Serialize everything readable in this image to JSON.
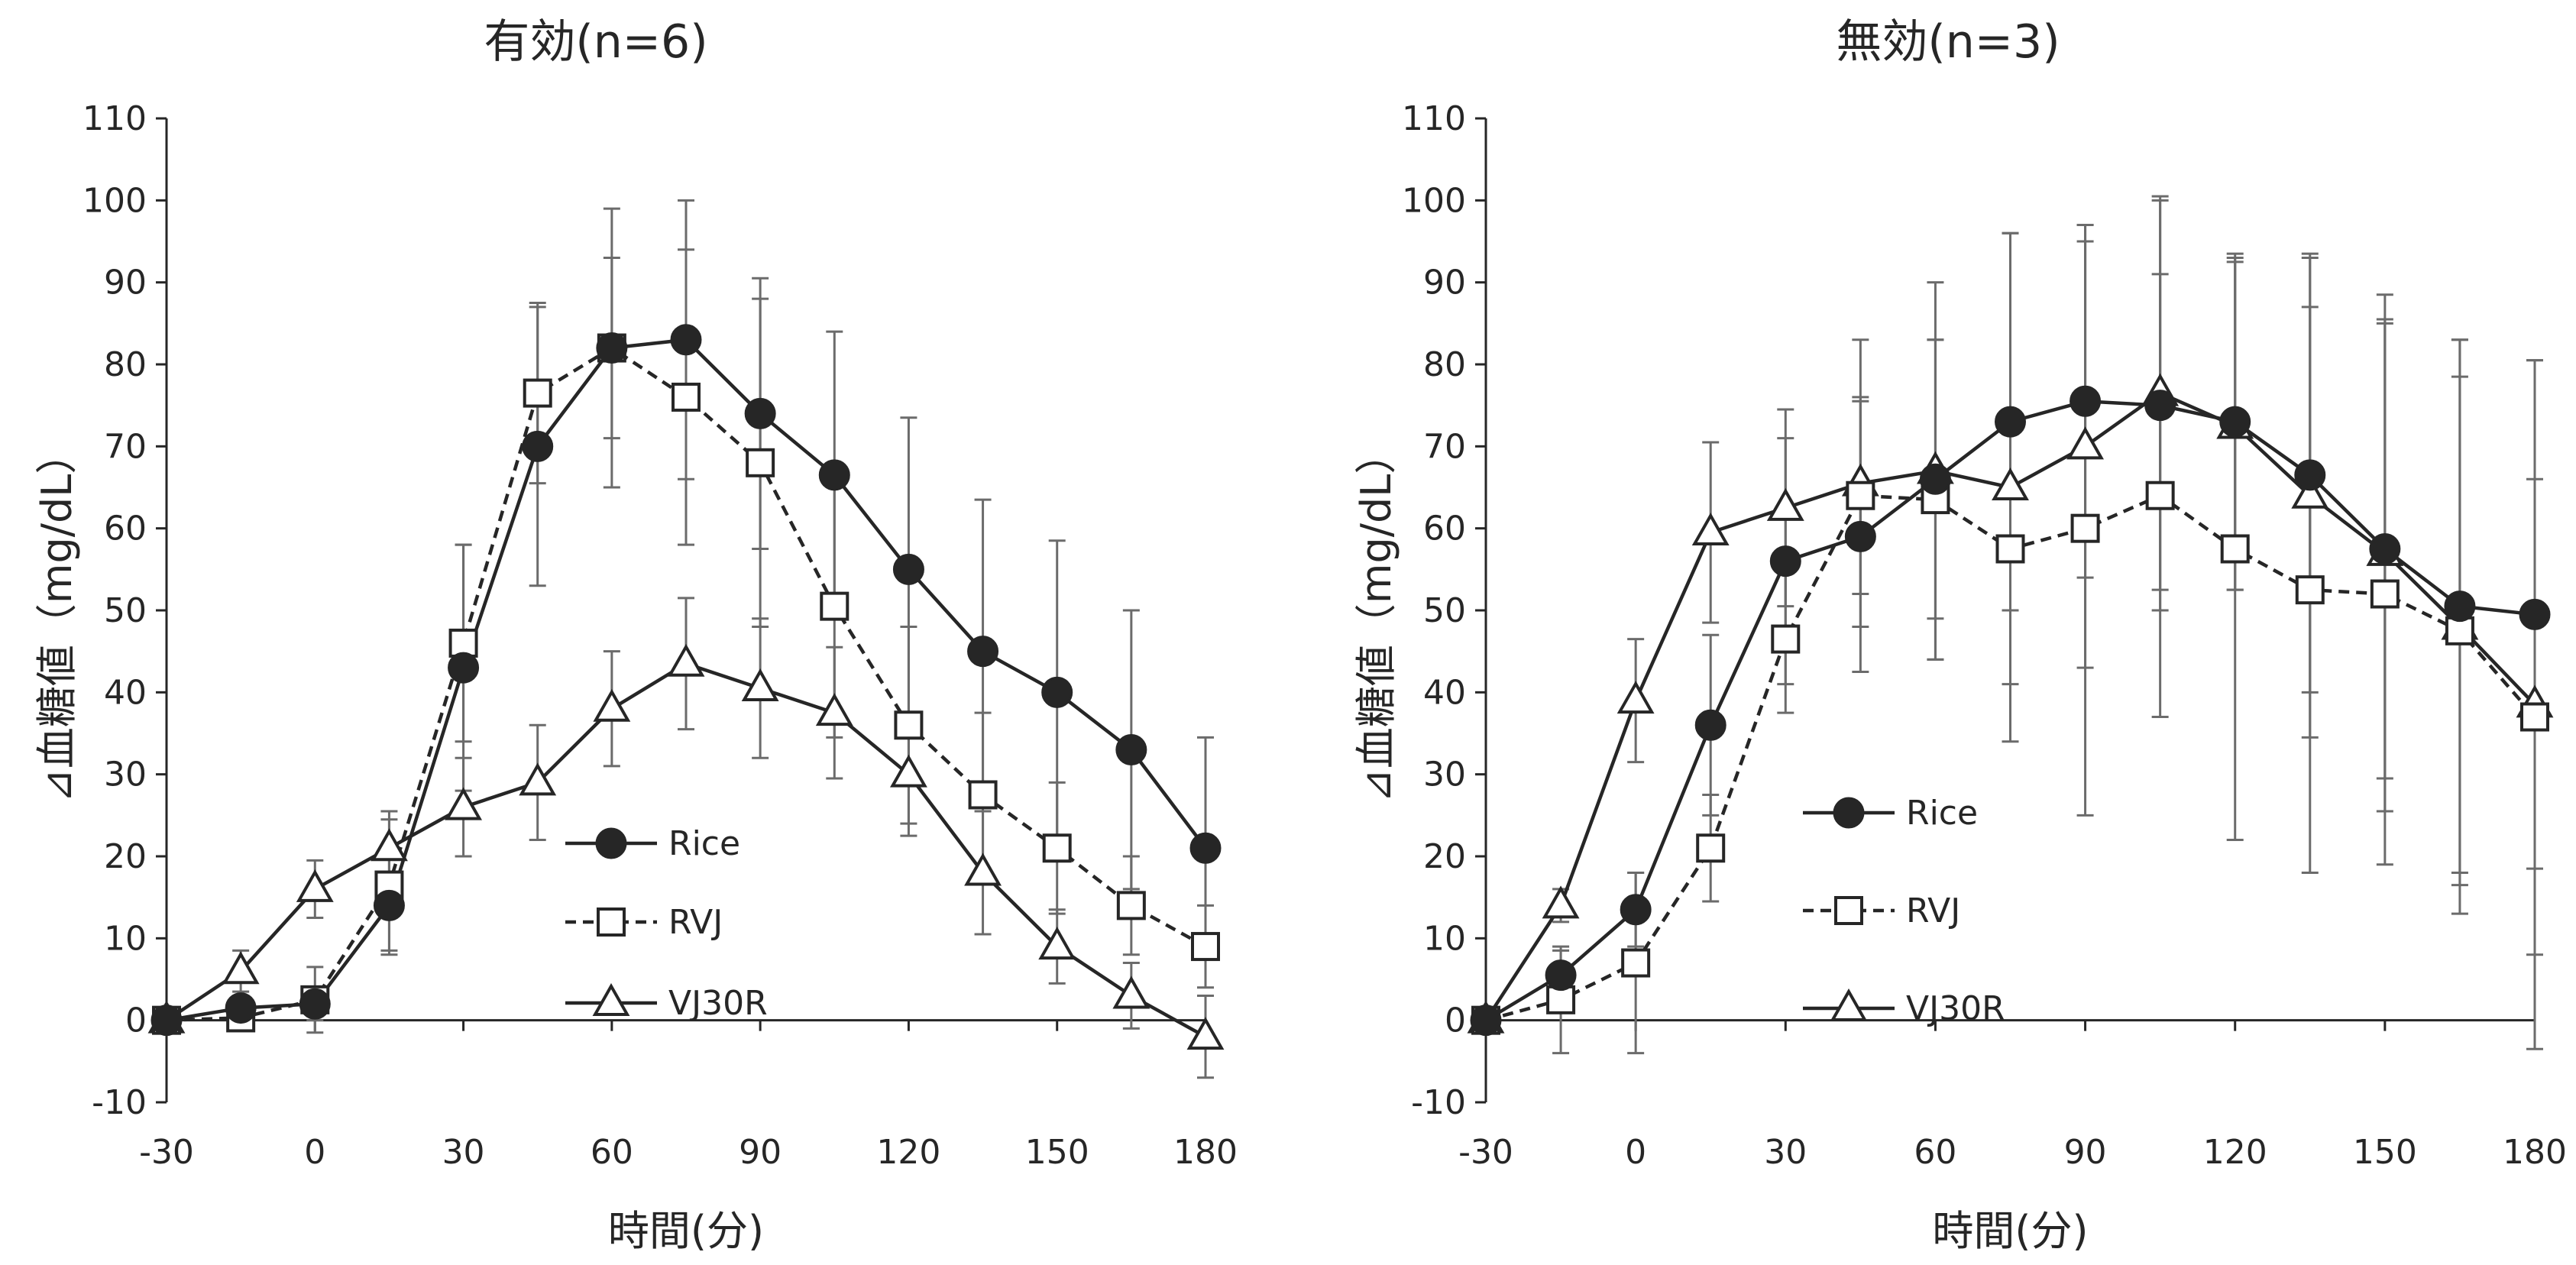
{
  "chart_data": [
    {
      "type": "line",
      "title": "有効(n=6)",
      "xlabel": "時間(分)",
      "ylabel": "⊿血糖値（mg/dL）",
      "x": [
        -30,
        -15,
        0,
        15,
        30,
        45,
        60,
        75,
        90,
        105,
        120,
        135,
        150,
        165,
        180
      ],
      "xticks": [
        "-30",
        "0",
        "30",
        "60",
        "90",
        "120",
        "150",
        "180"
      ],
      "yticks": [
        "-10",
        "0",
        "10",
        "20",
        "30",
        "40",
        "50",
        "60",
        "70",
        "80",
        "90",
        "100",
        "110"
      ],
      "xlim": [
        -30,
        180
      ],
      "ylim": [
        -10,
        110
      ],
      "grid": false,
      "legend_position": "center-right",
      "series": [
        {
          "name": "Rice",
          "marker": "circle-filled",
          "line": "solid",
          "values": [
            0,
            1.5,
            2,
            14,
            43,
            70,
            82,
            83,
            74,
            66.5,
            55,
            45,
            40,
            33,
            21
          ],
          "err": [
            0,
            1,
            2,
            6,
            15,
            17,
            17,
            17,
            16.5,
            17.5,
            18.5,
            18.5,
            18.5,
            17,
            13.5
          ]
        },
        {
          "name": "RVJ",
          "marker": "square-open",
          "line": "dashed",
          "values": [
            0,
            0.3,
            2.5,
            16.5,
            46,
            76.5,
            82,
            76,
            68,
            50.5,
            36,
            27.5,
            21,
            14,
            9
          ],
          "err": [
            0,
            1,
            4,
            8,
            12,
            11,
            11,
            18,
            20,
            16,
            12,
            10,
            8,
            6,
            5
          ]
        },
        {
          "name": "VJ30R",
          "marker": "triangle-open",
          "line": "solid",
          "values": [
            0,
            6,
            16,
            21,
            26,
            29,
            38,
            43.5,
            40.5,
            37.5,
            30,
            18,
            9,
            3,
            -2
          ],
          "err": [
            0,
            2.5,
            3.5,
            4.5,
            6,
            7,
            7,
            8,
            8.5,
            8,
            7.5,
            7.5,
            4.5,
            4,
            5
          ]
        }
      ]
    },
    {
      "type": "line",
      "title": "無効(n=3)",
      "xlabel": "時間(分)",
      "ylabel": "⊿血糖値（mg/dL）",
      "x": [
        -30,
        -15,
        0,
        15,
        30,
        45,
        60,
        75,
        90,
        105,
        120,
        135,
        150,
        165,
        180
      ],
      "xticks": [
        "-30",
        "0",
        "30",
        "60",
        "90",
        "120",
        "150",
        "180"
      ],
      "yticks": [
        "-10",
        "0",
        "10",
        "20",
        "30",
        "40",
        "50",
        "60",
        "70",
        "80",
        "90",
        "100",
        "110"
      ],
      "xlim": [
        -30,
        180
      ],
      "ylim": [
        -10,
        110
      ],
      "grid": false,
      "legend_position": "center-right",
      "series": [
        {
          "name": "Rice",
          "marker": "circle-filled",
          "line": "solid",
          "values": [
            0,
            5.5,
            13.5,
            36,
            56,
            59,
            66,
            73,
            75.5,
            75,
            73,
            66.5,
            57.5,
            50.5,
            49.5
          ],
          "err": [
            0,
            3,
            4.5,
            11,
            15,
            16.5,
            17,
            23,
            21.5,
            25,
            20.5,
            26.5,
            28,
            32.5,
            31
          ]
        },
        {
          "name": "RVJ",
          "marker": "square-open",
          "line": "dashed",
          "values": [
            0,
            2.5,
            7,
            21,
            46.5,
            64,
            63.5,
            57.5,
            60,
            64,
            57.5,
            52.5,
            52,
            47.5,
            37
          ],
          "err": [
            0,
            6.5,
            11,
            6.5,
            9,
            12,
            19.5,
            16.5,
            35,
            27,
            35.5,
            34.5,
            33,
            31,
            29
          ]
        },
        {
          "name": "VJ30R",
          "marker": "triangle-open",
          "line": "solid",
          "values": [
            0,
            14,
            39,
            59.5,
            62.5,
            65.5,
            67,
            65,
            70,
            76.5,
            72.5,
            64,
            57,
            48,
            38.5
          ],
          "err": [
            0,
            2,
            7.5,
            11,
            12,
            17.5,
            23,
            31,
            27,
            24,
            20,
            29.5,
            31.5,
            35,
            42
          ]
        }
      ]
    }
  ]
}
